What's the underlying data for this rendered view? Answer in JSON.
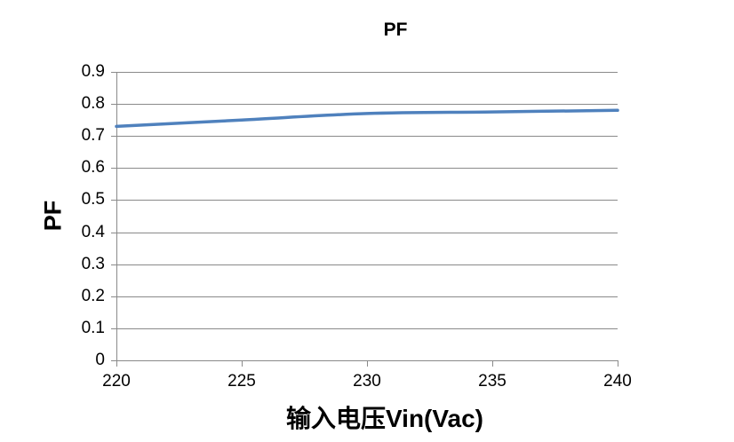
{
  "chart_data": {
    "type": "line",
    "title": "PF",
    "xlabel": "输入电压Vin(Vac)",
    "ylabel": "PF",
    "x": [
      220,
      225,
      230,
      235,
      240
    ],
    "series": [
      {
        "name": "PF",
        "values": [
          0.73,
          0.75,
          0.77,
          0.775,
          0.78
        ],
        "smooth": true
      }
    ],
    "xticks": [
      220,
      225,
      230,
      235,
      240
    ],
    "yticks": [
      0,
      0.1,
      0.2,
      0.3,
      0.4,
      0.5,
      0.6,
      0.7,
      0.8,
      0.9
    ],
    "xlim": [
      220,
      240
    ],
    "ylim": [
      0,
      0.9
    ],
    "grid": "horizontal",
    "legend": "none",
    "colors": {
      "series_line": "#4F81BD",
      "gridline": "#8A8A8A",
      "axis": "#8A8A8A",
      "text": "#000000",
      "background": "#FFFFFF"
    }
  }
}
